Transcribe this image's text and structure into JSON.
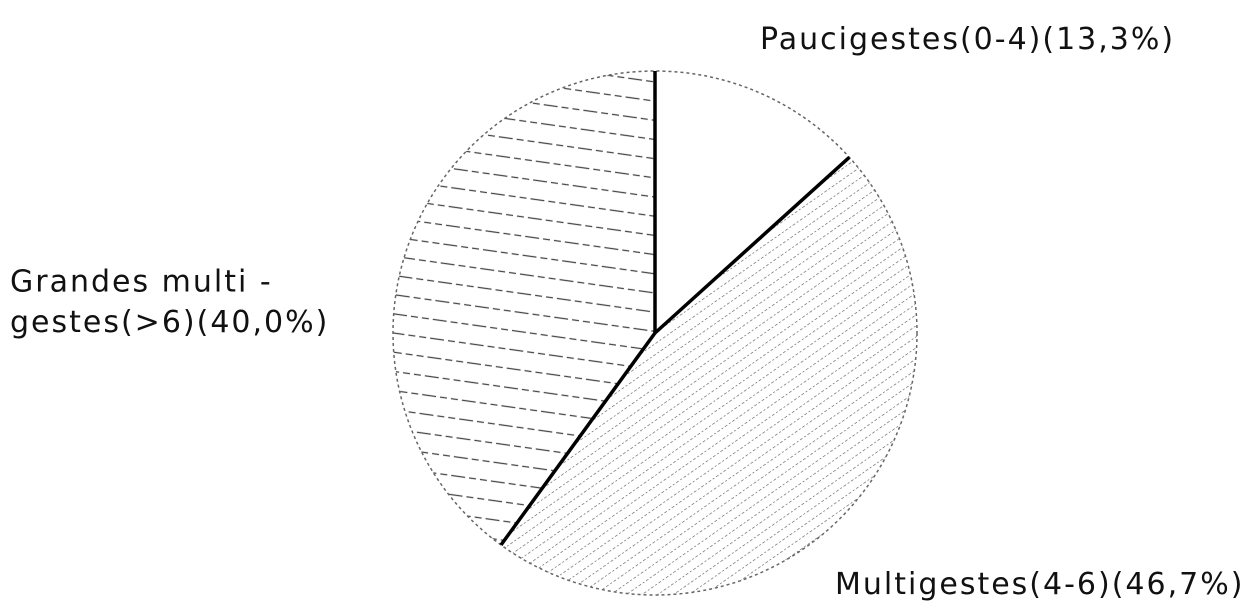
{
  "chart_data": {
    "type": "pie",
    "categories": [
      "Paucigestes(0-4)",
      "Multigestes(4-6)",
      "Grandes multi-gestes(>6)"
    ],
    "values": [
      13.3,
      46.7,
      40.0
    ],
    "value_labels": [
      "(13,3%)",
      "(46,7%)",
      "(40,0%)"
    ]
  }
}
